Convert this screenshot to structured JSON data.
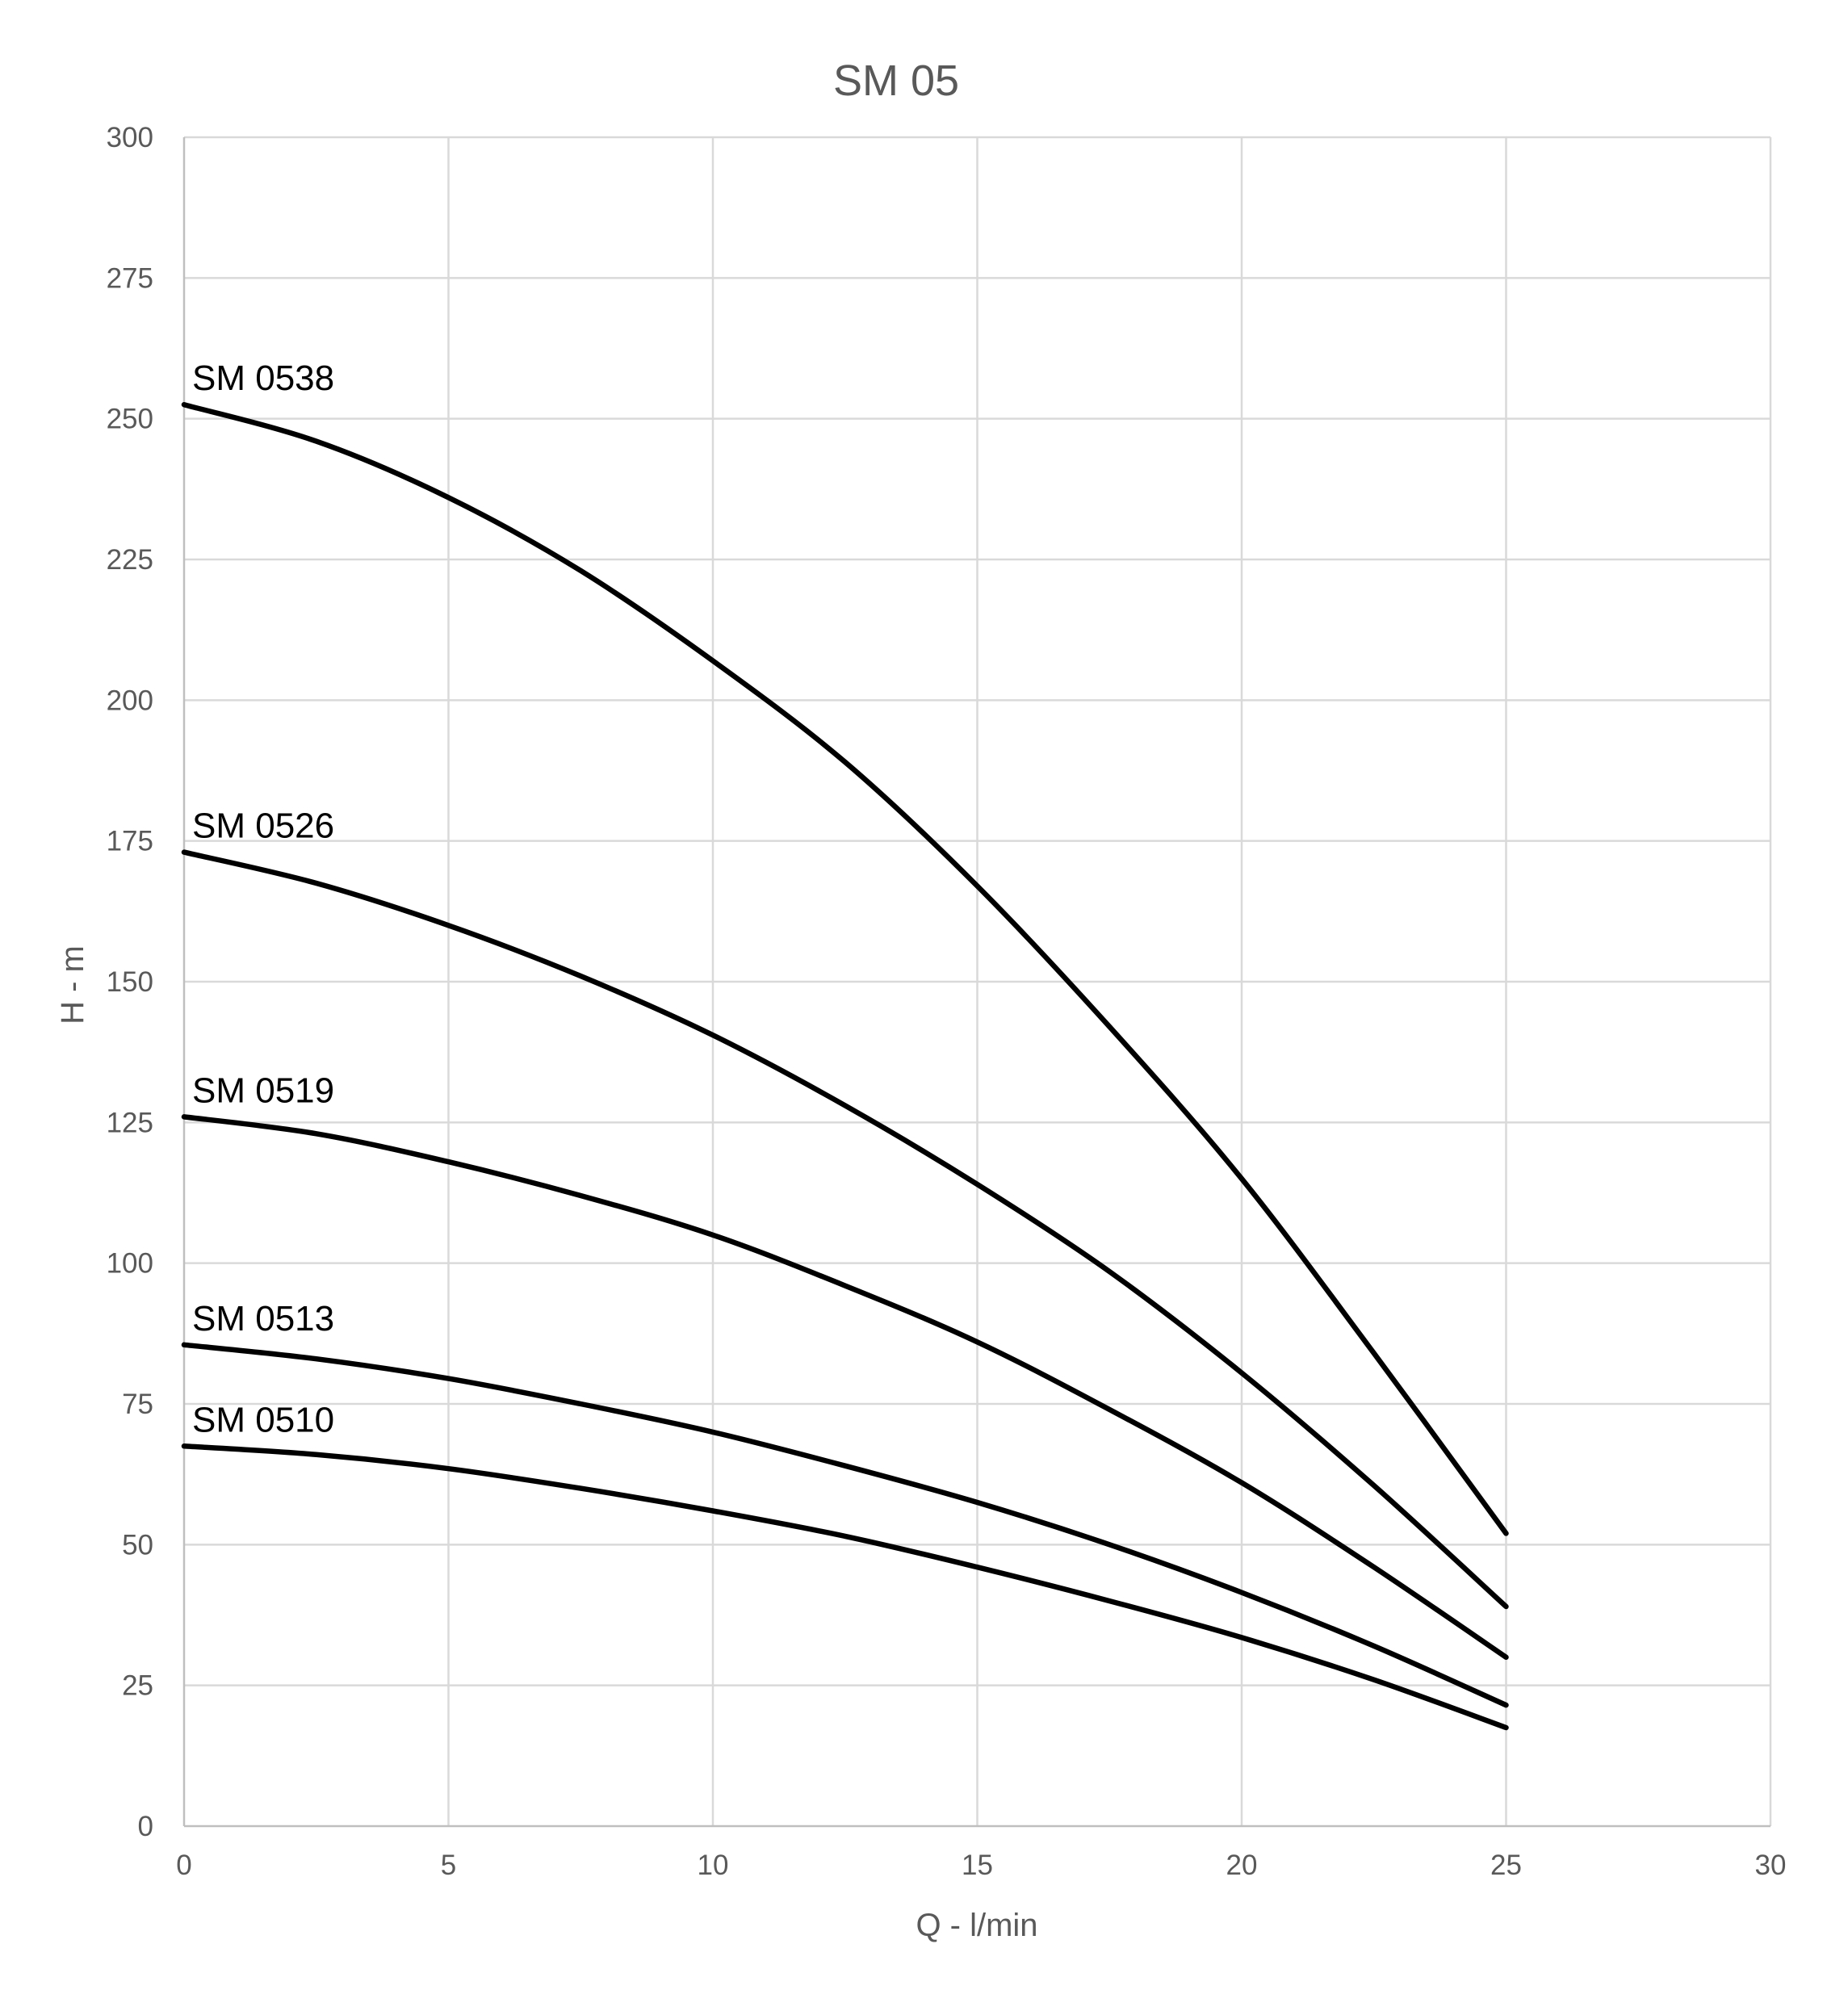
{
  "chart_data": {
    "type": "line",
    "title": "SM 05",
    "xlabel": "Q - l/min",
    "ylabel": "H - m",
    "xlim": [
      0,
      30
    ],
    "ylim": [
      0,
      300
    ],
    "x_ticks": [
      0,
      5,
      10,
      15,
      20,
      25,
      30
    ],
    "y_ticks": [
      0,
      25,
      50,
      75,
      100,
      125,
      150,
      175,
      200,
      225,
      250,
      275,
      300
    ],
    "grid": true,
    "legend": "none (series labels placed at curve start)",
    "x": [
      0,
      2.5,
      5,
      7.5,
      10,
      12.5,
      15,
      17.5,
      20,
      22.5,
      25
    ],
    "series": [
      {
        "name": "SM 0538",
        "values": [
          252.5,
          246,
          236,
          223,
          207,
          189,
          167,
          142,
          115,
          84,
          52
        ]
      },
      {
        "name": "SM 0526",
        "values": [
          173,
          167.5,
          160,
          151,
          140.5,
          128,
          114,
          98.5,
          80.5,
          60.5,
          39
        ]
      },
      {
        "name": "SM 0519",
        "values": [
          126,
          123,
          118,
          112,
          105,
          96,
          86,
          74,
          61,
          46,
          30
        ]
      },
      {
        "name": "SM 0513",
        "values": [
          85.5,
          83,
          79.5,
          75,
          70,
          64,
          57.5,
          50,
          41.5,
          32,
          21.5
        ]
      },
      {
        "name": "SM 0510",
        "values": [
          67.5,
          66,
          63.5,
          60,
          56,
          51.5,
          46,
          40,
          33.5,
          26,
          17.5
        ]
      }
    ]
  }
}
